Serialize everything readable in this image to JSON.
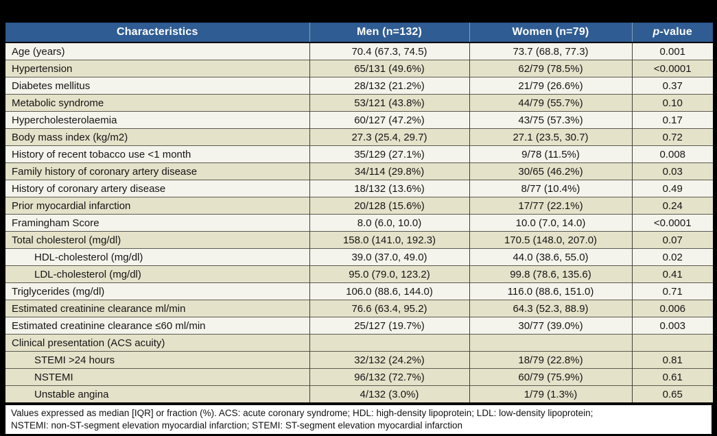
{
  "colors": {
    "header_bg": "#2f5c92",
    "header_text": "#ffffff",
    "row_light": "#f5f4ec",
    "row_beige": "#e5e2ca",
    "page_bg": "#000000"
  },
  "table": {
    "header": {
      "characteristics": "Characteristics",
      "men": "Men (n=132)",
      "women": "Women (n=79)",
      "p_italic": "p",
      "p_rest": "-value"
    },
    "rows": [
      {
        "label": "Age (years)",
        "men": "70.4 (67.3, 74.5)",
        "women": "73.7 (68.8, 77.3)",
        "p": "0.001",
        "indent": false,
        "bg": "a"
      },
      {
        "label": "Hypertension",
        "men": "65/131 (49.6%)",
        "women": "62/79 (78.5%)",
        "p": "<0.0001",
        "indent": false,
        "bg": "b"
      },
      {
        "label": "Diabetes mellitus",
        "men": "28/132 (21.2%)",
        "women": "21/79 (26.6%)",
        "p": "0.37",
        "indent": false,
        "bg": "a"
      },
      {
        "label": "Metabolic syndrome",
        "men": "53/121 (43.8%)",
        "women": "44/79 (55.7%)",
        "p": "0.10",
        "indent": false,
        "bg": "b"
      },
      {
        "label": "Hypercholesterolaemia",
        "men": "60/127 (47.2%)",
        "women": "43/75 (57.3%)",
        "p": "0.17",
        "indent": false,
        "bg": "a"
      },
      {
        "label": "Body mass index (kg/m2)",
        "men": "27.3 (25.4, 29.7)",
        "women": "27.1 (23.5, 30.7)",
        "p": "0.72",
        "indent": false,
        "bg": "b"
      },
      {
        "label": "History of recent tobacco use <1 month",
        "men": "35/129 (27.1%)",
        "women": "9/78 (11.5%)",
        "p": "0.008",
        "indent": false,
        "bg": "a"
      },
      {
        "label": "Family history of coronary artery disease",
        "men": "34/114 (29.8%)",
        "women": "30/65 (46.2%)",
        "p": "0.03",
        "indent": false,
        "bg": "b"
      },
      {
        "label": "History of coronary artery disease",
        "men": "18/132 (13.6%)",
        "women": "8/77 (10.4%)",
        "p": "0.49",
        "indent": false,
        "bg": "a"
      },
      {
        "label": "Prior myocardial infarction",
        "men": "20/128 (15.6%)",
        "women": "17/77 (22.1%)",
        "p": "0.24",
        "indent": false,
        "bg": "b"
      },
      {
        "label": "Framingham Score",
        "men": "8.0 (6.0, 10.0)",
        "women": "10.0 (7.0, 14.0)",
        "p": "<0.0001",
        "indent": false,
        "bg": "a"
      },
      {
        "label": "Total cholesterol (mg/dl)",
        "men": "158.0 (141.0, 192.3)",
        "women": "170.5 (148.0, 207.0)",
        "p": "0.07",
        "indent": false,
        "bg": "b"
      },
      {
        "label": "HDL-cholesterol (mg/dl)",
        "men": "39.0 (37.0, 49.0)",
        "women": "44.0 (38.6, 55.0)",
        "p": "0.02",
        "indent": true,
        "bg": "a"
      },
      {
        "label": "LDL-cholesterol (mg/dl)",
        "men": "95.0 (79.0, 123.2)",
        "women": "99.8 (78.6, 135.6)",
        "p": "0.41",
        "indent": true,
        "bg": "b"
      },
      {
        "label": "Triglycerides (mg/dl)",
        "men": "106.0 (88.6, 144.0)",
        "women": "116.0 (88.6, 151.0)",
        "p": "0.71",
        "indent": false,
        "bg": "a"
      },
      {
        "label": "Estimated creatinine clearance ml/min",
        "men": "76.6 (63.4, 95.2)",
        "women": "64.3 (52.3, 88.9)",
        "p": "0.006",
        "indent": false,
        "bg": "b"
      },
      {
        "label": "Estimated creatinine clearance ≤60 ml/min",
        "men": "25/127 (19.7%)",
        "women": "30/77 (39.0%)",
        "p": "0.003",
        "indent": false,
        "bg": "a"
      },
      {
        "label": "Clinical presentation (ACS acuity)",
        "men": "",
        "women": "",
        "p": "",
        "indent": false,
        "bg": "b"
      },
      {
        "label": "STEMI >24 hours",
        "men": "32/132 (24.2%)",
        "women": "18/79 (22.8%)",
        "p": "0.81",
        "indent": true,
        "bg": "b"
      },
      {
        "label": "NSTEMI",
        "men": "96/132 (72.7%)",
        "women": "60/79 (75.9%)",
        "p": "0.61",
        "indent": true,
        "bg": "b"
      },
      {
        "label": "Unstable angina",
        "men": "4/132 (3.0%)",
        "women": "1/79 (1.3%)",
        "p": "0.65",
        "indent": true,
        "bg": "b"
      }
    ]
  },
  "footnote": {
    "line1": "Values expressed as median [IQR] or fraction (%). ACS: acute coronary syndrome; HDL: high-density lipoprotein; LDL: low-density lipoprotein;",
    "line2": "NSTEMI: non-ST-segment elevation myocardial infarction; STEMI: ST-segment elevation myocardial infarction"
  }
}
